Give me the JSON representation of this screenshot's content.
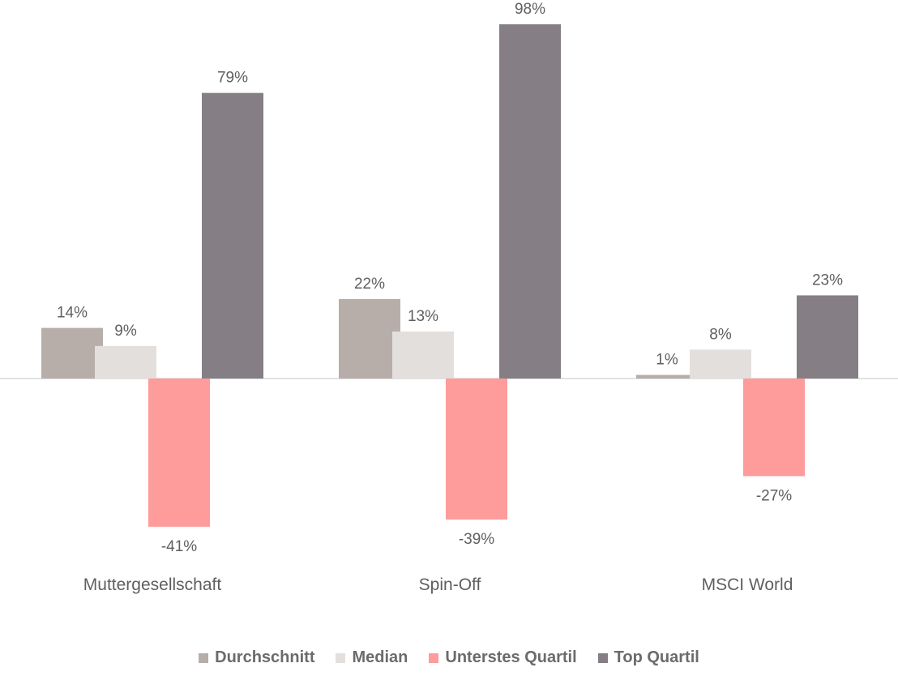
{
  "chart_data": {
    "type": "bar",
    "categories": [
      "Muttergesellschaft",
      "Spin-Off",
      "MSCI World"
    ],
    "series": [
      {
        "name": "Durchschnitt",
        "values": [
          14,
          22,
          1
        ],
        "labels": [
          "14%",
          "22%",
          "1%"
        ],
        "color": "#b7ada9"
      },
      {
        "name": "Median",
        "values": [
          9,
          13,
          8
        ],
        "labels": [
          "9%",
          "13%",
          "8%"
        ],
        "color": "#e3dfdd"
      },
      {
        "name": "Unterstes Quartil",
        "values": [
          -41,
          -39,
          -27
        ],
        "labels": [
          "-41%",
          "-39%",
          "-27%"
        ],
        "color": "#fe9b9b"
      },
      {
        "name": "Top Quartil",
        "values": [
          79,
          98,
          23
        ],
        "labels": [
          "79%",
          "98%",
          "23%"
        ],
        "color": "#857f85"
      }
    ],
    "ylim": [
      -50,
      100
    ],
    "grid": false,
    "legend_position": "bottom"
  }
}
